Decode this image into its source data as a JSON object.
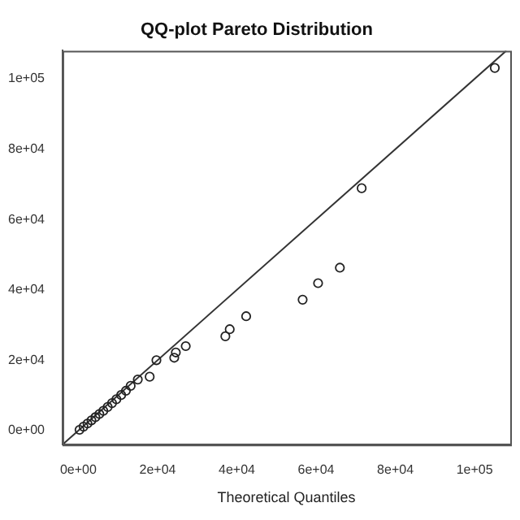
{
  "chart_data": {
    "type": "scatter",
    "title": "QQ-plot Pareto Distribution",
    "xlabel": "Theoretical Quantiles",
    "xlim": [
      -4000,
      109000
    ],
    "ylim": [
      -4000,
      108000
    ],
    "xticks": [
      {
        "value": 0,
        "label": "0e+00"
      },
      {
        "value": 20000,
        "label": "2e+04"
      },
      {
        "value": 40000,
        "label": "4e+04"
      },
      {
        "value": 60000,
        "label": "6e+04"
      },
      {
        "value": 80000,
        "label": "8e+04"
      },
      {
        "value": 100000,
        "label": "1e+05"
      }
    ],
    "yticks": [
      {
        "value": 0,
        "label": "0e+00"
      },
      {
        "value": 20000,
        "label": "2e+04"
      },
      {
        "value": 40000,
        "label": "4e+04"
      },
      {
        "value": 60000,
        "label": "6e+04"
      },
      {
        "value": 80000,
        "label": "8e+04"
      },
      {
        "value": 100000,
        "label": "1e+05"
      }
    ],
    "grid": false,
    "legend": false,
    "marker": "circle",
    "series": [
      {
        "color": "#222222",
        "x": [
          300,
          1300,
          2300,
          3300,
          4300,
          5300,
          6300,
          7400,
          8500,
          9600,
          10800,
          12000,
          13200,
          15000,
          18000,
          19700,
          24200,
          24600,
          27100,
          37100,
          38200,
          42350,
          56600,
          60500,
          66000,
          71500,
          105100
        ],
        "values": [
          200,
          1100,
          2000,
          2900,
          3800,
          4700,
          5600,
          6700,
          7800,
          8900,
          10100,
          11300,
          12700,
          14500,
          15300,
          20000,
          20700,
          22200,
          24000,
          26800,
          28800,
          32500,
          37200,
          41900,
          46300,
          68900,
          103100
        ]
      },
      {
        "type": "line",
        "color": "#333333",
        "marker": "none",
        "x": [
          -4000,
          108000
        ],
        "values": [
          -4000,
          108000
        ]
      }
    ]
  }
}
